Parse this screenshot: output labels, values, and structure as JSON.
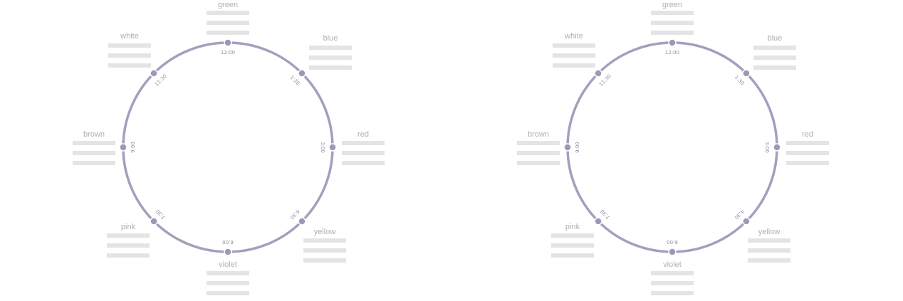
{
  "colors": {
    "ring": "#a39fbd",
    "node": "#9d98b8",
    "time_text": "#8f8aa8",
    "label_text": "#b0b0b0",
    "placeholder_bar": "#e4e4e4"
  },
  "diagrams": [
    {
      "nodes": [
        {
          "label": "green",
          "time": "12:00"
        },
        {
          "label": "blue",
          "time": "1:30"
        },
        {
          "label": "red",
          "time": "3:00"
        },
        {
          "label": "yellow",
          "time": "4:30"
        },
        {
          "label": "violet",
          "time": "6:00"
        },
        {
          "label": "pink",
          "time": "7:30"
        },
        {
          "label": "brown",
          "time": "9:00"
        },
        {
          "label": "white",
          "time": "11:30"
        }
      ]
    },
    {
      "nodes": [
        {
          "label": "green",
          "time": "12:00"
        },
        {
          "label": "blue",
          "time": "1:30"
        },
        {
          "label": "red",
          "time": "3:00"
        },
        {
          "label": "yellow",
          "time": "4:30"
        },
        {
          "label": "violet",
          "time": "6:00"
        },
        {
          "label": "pink",
          "time": "7:30"
        },
        {
          "label": "brown",
          "time": "9:00"
        },
        {
          "label": "white",
          "time": "11:30"
        }
      ]
    }
  ]
}
